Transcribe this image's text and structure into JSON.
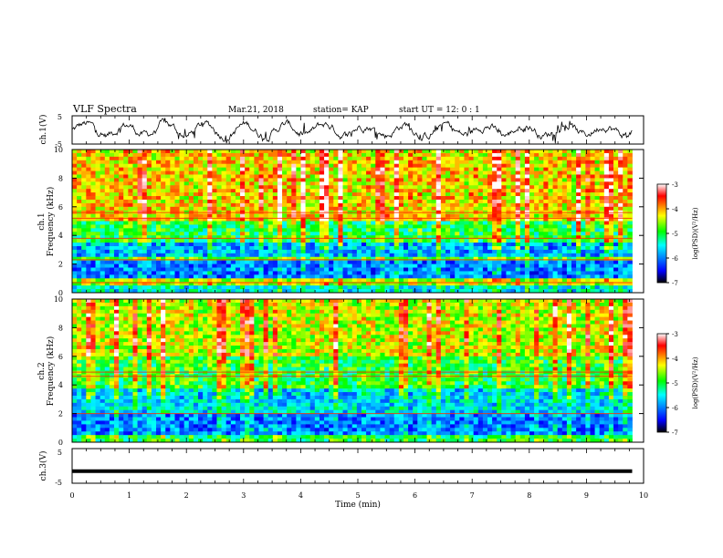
{
  "header": {
    "title": "VLF Spectra",
    "date": "Mar.21, 2018",
    "station": "station= KAP",
    "start": "start UT =  12: 0  : 1"
  },
  "colors": {
    "waveform": "#000000",
    "colormap": [
      "#000000",
      "#0000ff",
      "#00ffff",
      "#00ff00",
      "#ffff00",
      "#ff0000",
      "#ffffff"
    ]
  },
  "chart_data": [
    {
      "type": "line",
      "name": "ch1-waveform",
      "ylabel": "ch.1(V)",
      "ylim": [
        -5,
        5
      ],
      "yticks": [
        "5",
        "-5"
      ],
      "xlim": [
        0,
        10
      ],
      "note_values": "noisy waveform oscillating roughly between -2 and 2 V"
    },
    {
      "type": "heatmap",
      "name": "ch1-spectrogram",
      "ylabel": "ch.1 Frequency (kHz)",
      "ylim": [
        0,
        10
      ],
      "yticks": [
        "0",
        "2",
        "4",
        "6",
        "8",
        "10"
      ],
      "xlim": [
        0,
        10
      ],
      "data_xmax": 9.8,
      "colorbar": {
        "label": "log(PSD)(V²/Hz)",
        "range": [
          -7,
          -3
        ],
        "ticks": [
          "-3",
          "-4",
          "-5",
          "-6",
          "-7"
        ]
      },
      "bands": [
        {
          "from": 0.0,
          "to": 0.6,
          "level": -5.5
        },
        {
          "from": 0.6,
          "to": 1.0,
          "level": -4.5
        },
        {
          "from": 1.0,
          "to": 2.2,
          "level": -6.0
        },
        {
          "from": 2.2,
          "to": 2.6,
          "level": -4.8
        },
        {
          "from": 2.6,
          "to": 3.6,
          "level": -5.8
        },
        {
          "from": 3.6,
          "to": 5.0,
          "level": -5.0
        },
        {
          "from": 5.0,
          "to": 10.0,
          "level": -4.2
        }
      ],
      "lines_khz": [
        0.7,
        2.3,
        3.8,
        5.2,
        5.6
      ]
    },
    {
      "type": "heatmap",
      "name": "ch2-spectrogram",
      "ylabel": "ch.2 Frequency (kHz)",
      "ylim": [
        0,
        10
      ],
      "yticks": [
        "0",
        "2",
        "4",
        "6",
        "8",
        "10"
      ],
      "xlim": [
        0,
        10
      ],
      "data_xmax": 9.8,
      "colorbar": {
        "label": "log(PSD)(V²/Hz)",
        "range": [
          -7,
          -3
        ],
        "ticks": [
          "-3",
          "-4",
          "-5",
          "-6",
          "-7"
        ]
      },
      "bands": [
        {
          "from": 0.0,
          "to": 0.4,
          "level": -5.0
        },
        {
          "from": 0.4,
          "to": 2.0,
          "level": -6.0
        },
        {
          "from": 2.0,
          "to": 3.8,
          "level": -5.6
        },
        {
          "from": 3.8,
          "to": 6.0,
          "level": -4.9
        },
        {
          "from": 6.0,
          "to": 10.0,
          "level": -4.4
        }
      ],
      "lines_khz": [
        2.0,
        4.6,
        4.9
      ]
    },
    {
      "type": "line",
      "name": "ch3-waveform",
      "ylabel": "ch.3(V)",
      "ylim": [
        -5,
        5
      ],
      "yticks": [
        "5",
        "-5"
      ],
      "xlim": [
        0,
        10
      ],
      "x": [
        0,
        9.8
      ],
      "y": [
        -1.5,
        -1.5
      ]
    }
  ],
  "xaxis": {
    "label": "Time (min)",
    "ticks": [
      "0",
      "1",
      "2",
      "3",
      "4",
      "5",
      "6",
      "7",
      "8",
      "9",
      "10"
    ],
    "range": [
      0,
      10
    ]
  }
}
